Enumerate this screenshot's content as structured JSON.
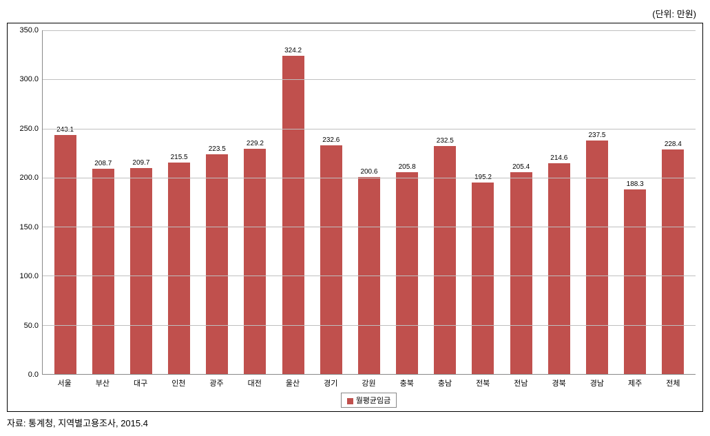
{
  "unit_label": "(단위: 만원)",
  "chart": {
    "type": "bar",
    "ylim": [
      0,
      350
    ],
    "ytick_step": 50,
    "yticks": [
      "0.0",
      "50.0",
      "100.0",
      "150.0",
      "200.0",
      "250.0",
      "300.0",
      "350.0"
    ],
    "grid_color": "#bfbfbf",
    "axis_color": "#888888",
    "background_color": "#ffffff",
    "bar_color": "#c0504d",
    "bar_width": 0.6,
    "label_fontsize": 11,
    "value_fontsize": 10,
    "categories": [
      "서울",
      "부산",
      "대구",
      "인천",
      "광주",
      "대전",
      "울산",
      "경기",
      "강원",
      "충북",
      "충남",
      "전북",
      "전남",
      "경북",
      "경남",
      "제주",
      "전체"
    ],
    "values": [
      243.1,
      208.7,
      209.7,
      215.5,
      223.5,
      229.2,
      324.2,
      232.6,
      200.6,
      205.8,
      232.5,
      195.2,
      205.4,
      214.6,
      237.5,
      188.3,
      228.4
    ],
    "legend_label": "월평균임금"
  },
  "source": "자료: 통계청, 지역별고용조사, 2015.4"
}
